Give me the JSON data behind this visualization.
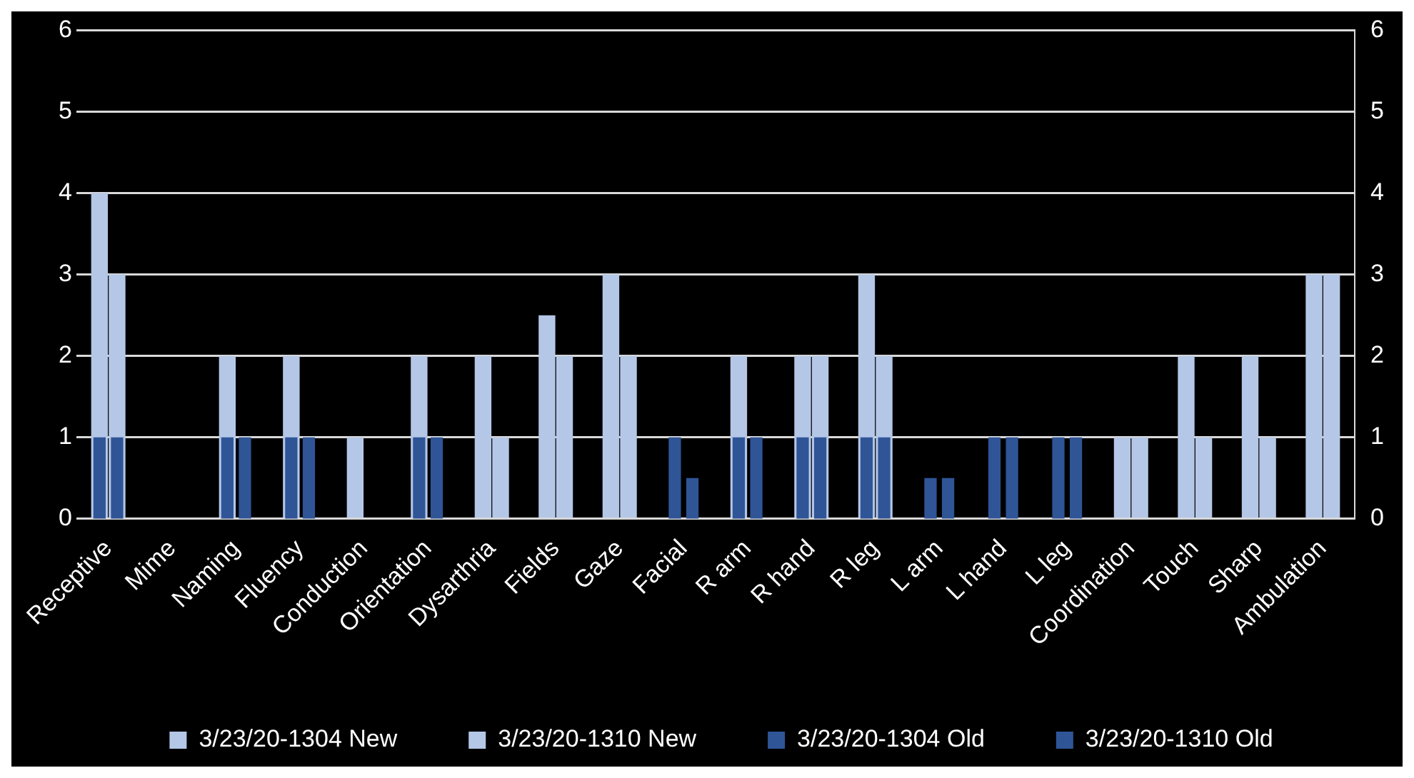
{
  "chart_data": {
    "type": "bar",
    "categories": [
      "Receptive",
      "Mime",
      "Naming",
      "Fluency",
      "Conduction",
      "Orientation",
      "Dysarthria",
      "Fields",
      "Gaze",
      "Facial",
      "R arm",
      "R hand",
      "R leg",
      "L arm",
      "L hand",
      "L leg",
      "Coordination",
      "Touch",
      "Sharp",
      "Ambulation"
    ],
    "series": [
      {
        "name": "3/23/20-1304 New",
        "color": "#b4c7e7",
        "values": [
          4,
          0,
          2,
          2,
          1,
          2,
          2,
          2.5,
          3,
          null,
          2,
          2,
          3,
          null,
          null,
          null,
          1,
          2,
          2,
          3
        ]
      },
      {
        "name": "3/23/20-1310 New",
        "color": "#b4c7e7",
        "values": [
          3,
          0,
          null,
          null,
          0,
          null,
          1,
          2,
          2,
          null,
          null,
          2,
          2,
          null,
          null,
          null,
          1,
          1,
          1,
          3
        ]
      },
      {
        "name": "3/23/20-1304 Old",
        "color": "#2f5597",
        "axis": "y2",
        "values": [
          1,
          0,
          1,
          1,
          0,
          1,
          0,
          0,
          0,
          1,
          1,
          1,
          1,
          0.5,
          1,
          1,
          0,
          0,
          0,
          0
        ]
      },
      {
        "name": "3/23/20-1310 Old",
        "color": "#2f5597",
        "axis": "y2",
        "values": [
          1,
          0,
          1,
          1,
          0,
          1,
          0,
          0,
          0,
          0.5,
          1,
          1,
          1,
          0.5,
          1,
          1,
          0,
          0,
          0,
          0
        ]
      }
    ],
    "ylim": [
      0,
      6
    ],
    "yticks": [
      0,
      1,
      2,
      3,
      4,
      5,
      6
    ],
    "y2lim": [
      0,
      6
    ],
    "y2ticks": [
      0,
      1,
      2,
      3,
      4,
      5,
      6
    ],
    "grid": "y",
    "legend": "bottom"
  }
}
